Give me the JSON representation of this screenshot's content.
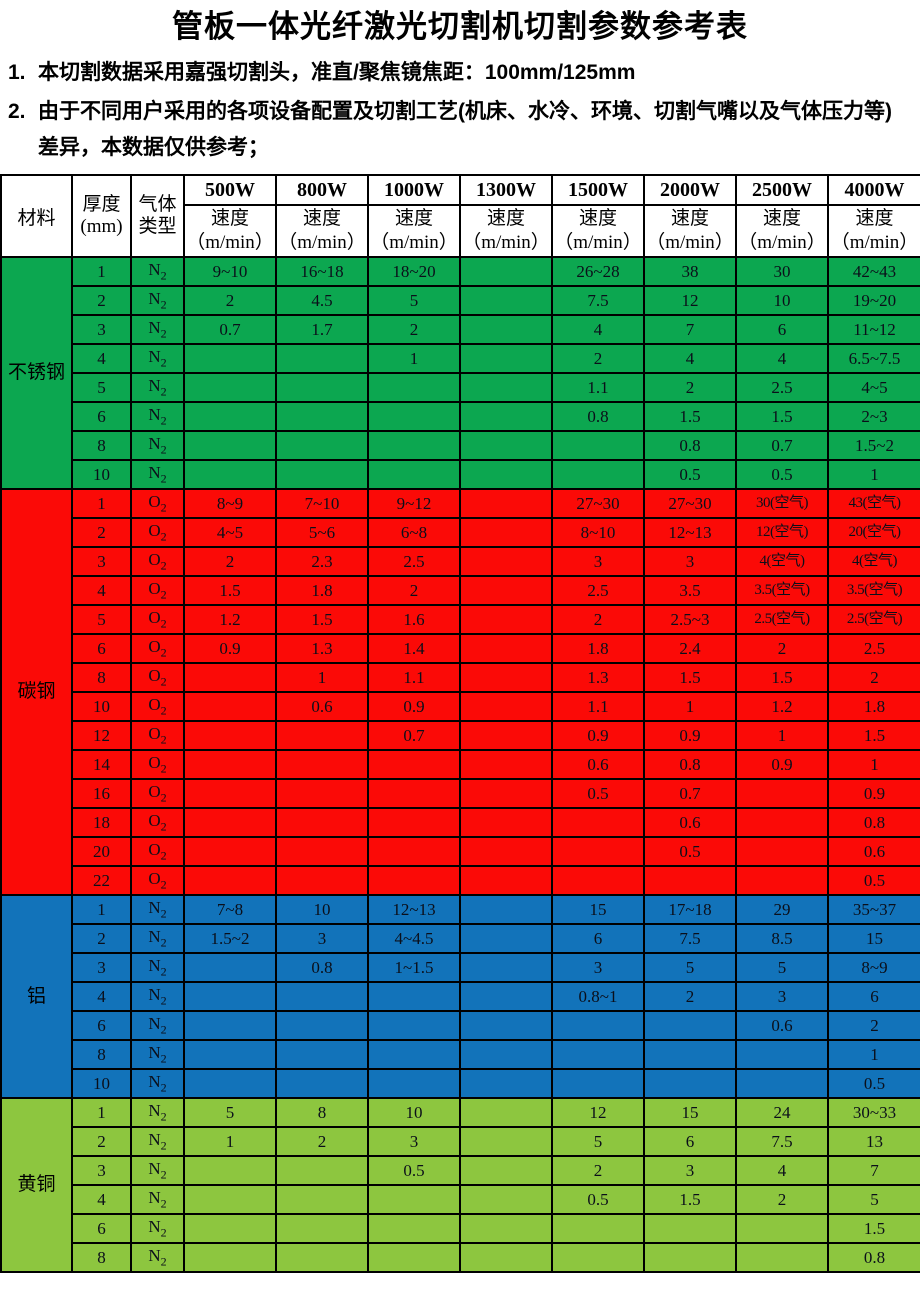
{
  "title": "管板一体光纤激光切割机切割参数参考表",
  "notes": [
    {
      "num": "1.",
      "text": "本切割数据采用嘉强切割头，准直/聚焦镜焦距：100mm/125mm"
    },
    {
      "num": "2.",
      "text": "由于不同用户采用的各项设备配置及切割工艺(机床、水冷、环境、切割气嘴以及气体压力等)差异，本数据仅供参考；"
    }
  ],
  "table": {
    "header": {
      "material": "材料",
      "thickness_line1": "厚度",
      "thickness_line2": "(mm)",
      "gas_line1": "气体",
      "gas_line2": "类型",
      "powers": [
        "500W",
        "800W",
        "1000W",
        "1300W",
        "1500W",
        "2000W",
        "2500W",
        "4000W"
      ],
      "speed_label": "速度",
      "speed_unit": "（m/min）"
    },
    "sections": [
      {
        "material": "不锈钢",
        "color": "#0CA750",
        "gas": "N2",
        "rows": [
          {
            "t": "1",
            "speeds": [
              "9~10",
              "16~18",
              "18~20",
              "",
              "26~28",
              "38",
              "30",
              "42~43"
            ]
          },
          {
            "t": "2",
            "speeds": [
              "2",
              "4.5",
              "5",
              "",
              "7.5",
              "12",
              "10",
              "19~20"
            ]
          },
          {
            "t": "3",
            "speeds": [
              "0.7",
              "1.7",
              "2",
              "",
              "4",
              "7",
              "6",
              "11~12"
            ]
          },
          {
            "t": "4",
            "speeds": [
              "",
              "",
              "1",
              "",
              "2",
              "4",
              "4",
              "6.5~7.5"
            ]
          },
          {
            "t": "5",
            "speeds": [
              "",
              "",
              "",
              "",
              "1.1",
              "2",
              "2.5",
              "4~5"
            ]
          },
          {
            "t": "6",
            "speeds": [
              "",
              "",
              "",
              "",
              "0.8",
              "1.5",
              "1.5",
              "2~3"
            ]
          },
          {
            "t": "8",
            "speeds": [
              "",
              "",
              "",
              "",
              "",
              "0.8",
              "0.7",
              "1.5~2"
            ]
          },
          {
            "t": "10",
            "speeds": [
              "",
              "",
              "",
              "",
              "",
              "0.5",
              "0.5",
              "1"
            ]
          }
        ]
      },
      {
        "material": "碳钢",
        "color": "#FB0A07",
        "gas": "O2",
        "rows": [
          {
            "t": "1",
            "speeds": [
              "8~9",
              "7~10",
              "9~12",
              "",
              "27~30",
              "27~30",
              "30(空气)",
              "43(空气)"
            ]
          },
          {
            "t": "2",
            "speeds": [
              "4~5",
              "5~6",
              "6~8",
              "",
              "8~10",
              "12~13",
              "12(空气)",
              "20(空气)"
            ]
          },
          {
            "t": "3",
            "speeds": [
              "2",
              "2.3",
              "2.5",
              "",
              "3",
              "3",
              "4(空气)",
              "4(空气)"
            ]
          },
          {
            "t": "4",
            "speeds": [
              "1.5",
              "1.8",
              "2",
              "",
              "2.5",
              "3.5",
              "3.5(空气)",
              "3.5(空气)"
            ]
          },
          {
            "t": "5",
            "speeds": [
              "1.2",
              "1.5",
              "1.6",
              "",
              "2",
              "2.5~3",
              "2.5(空气)",
              "2.5(空气)"
            ]
          },
          {
            "t": "6",
            "speeds": [
              "0.9",
              "1.3",
              "1.4",
              "",
              "1.8",
              "2.4",
              "2",
              "2.5"
            ]
          },
          {
            "t": "8",
            "speeds": [
              "",
              "1",
              "1.1",
              "",
              "1.3",
              "1.5",
              "1.5",
              "2"
            ]
          },
          {
            "t": "10",
            "speeds": [
              "",
              "0.6",
              "0.9",
              "",
              "1.1",
              "1",
              "1.2",
              "1.8"
            ]
          },
          {
            "t": "12",
            "speeds": [
              "",
              "",
              "0.7",
              "",
              "0.9",
              "0.9",
              "1",
              "1.5"
            ]
          },
          {
            "t": "14",
            "speeds": [
              "",
              "",
              "",
              "",
              "0.6",
              "0.8",
              "0.9",
              "1"
            ]
          },
          {
            "t": "16",
            "speeds": [
              "",
              "",
              "",
              "",
              "0.5",
              "0.7",
              "",
              "0.9"
            ]
          },
          {
            "t": "18",
            "speeds": [
              "",
              "",
              "",
              "",
              "",
              "0.6",
              "",
              "0.8"
            ]
          },
          {
            "t": "20",
            "speeds": [
              "",
              "",
              "",
              "",
              "",
              "0.5",
              "",
              "0.6"
            ]
          },
          {
            "t": "22",
            "speeds": [
              "",
              "",
              "",
              "",
              "",
              "",
              "",
              "0.5"
            ]
          }
        ]
      },
      {
        "material": "铝",
        "color": "#1273BA",
        "gas": "N2",
        "rows": [
          {
            "t": "1",
            "speeds": [
              "7~8",
              "10",
              "12~13",
              "",
              "15",
              "17~18",
              "29",
              "35~37"
            ]
          },
          {
            "t": "2",
            "speeds": [
              "1.5~2",
              "3",
              "4~4.5",
              "",
              "6",
              "7.5",
              "8.5",
              "15"
            ]
          },
          {
            "t": "3",
            "speeds": [
              "",
              "0.8",
              "1~1.5",
              "",
              "3",
              "5",
              "5",
              "8~9"
            ]
          },
          {
            "t": "4",
            "speeds": [
              "",
              "",
              "",
              "",
              "0.8~1",
              "2",
              "3",
              "6"
            ]
          },
          {
            "t": "6",
            "speeds": [
              "",
              "",
              "",
              "",
              "",
              "",
              "0.6",
              "2"
            ]
          },
          {
            "t": "8",
            "speeds": [
              "",
              "",
              "",
              "",
              "",
              "",
              "",
              "1"
            ]
          },
          {
            "t": "10",
            "speeds": [
              "",
              "",
              "",
              "",
              "",
              "",
              "",
              "0.5"
            ]
          }
        ]
      },
      {
        "material": "黄铜",
        "color": "#8DC63F",
        "gas": "N2",
        "rows": [
          {
            "t": "1",
            "speeds": [
              "5",
              "8",
              "10",
              "",
              "12",
              "15",
              "24",
              "30~33"
            ]
          },
          {
            "t": "2",
            "speeds": [
              "1",
              "2",
              "3",
              "",
              "5",
              "6",
              "7.5",
              "13"
            ]
          },
          {
            "t": "3",
            "speeds": [
              "",
              "",
              "0.5",
              "",
              "2",
              "3",
              "4",
              "7"
            ]
          },
          {
            "t": "4",
            "speeds": [
              "",
              "",
              "",
              "",
              "0.5",
              "1.5",
              "2",
              "5"
            ]
          },
          {
            "t": "6",
            "speeds": [
              "",
              "",
              "",
              "",
              "",
              "",
              "",
              "1.5"
            ]
          },
          {
            "t": "8",
            "speeds": [
              "",
              "",
              "",
              "",
              "",
              "",
              "",
              "0.8"
            ]
          }
        ]
      }
    ]
  }
}
